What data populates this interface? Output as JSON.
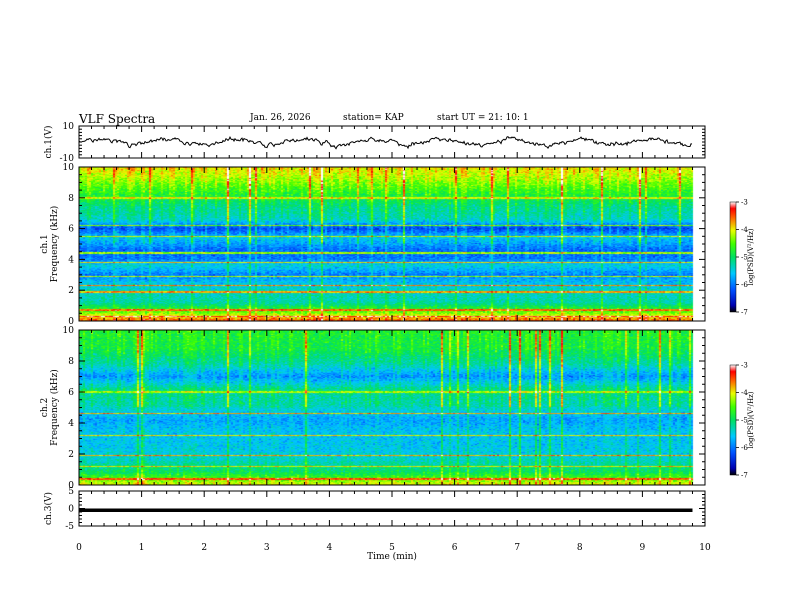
{
  "header": {
    "title": "VLF Spectra",
    "date": "Jan. 26, 2026",
    "station": "station= KAP",
    "start": "start  UT  =   21: 10: 1"
  },
  "chart_data": [
    {
      "type": "line",
      "panel": "ch1-waveform",
      "title": "",
      "ylabel": "ch.1(V)",
      "xlim": [
        0,
        10
      ],
      "ylim": [
        -10,
        10
      ],
      "yticks": [
        10,
        -10
      ],
      "trace_duration_min": 9.8,
      "series": [
        {
          "name": "ch.1 amplitude",
          "description": "noisy broadband trace, roughly between -4 and 4 V"
        }
      ]
    },
    {
      "type": "heatmap",
      "panel": "ch1-spectrogram",
      "ylabel": "ch.1\nFrequency (kHz)",
      "xlim": [
        0,
        10
      ],
      "ylim": [
        0,
        10
      ],
      "yticks": [
        0,
        2,
        4,
        6,
        8,
        10
      ],
      "data_duration_min": 9.8,
      "colorbar": {
        "label": "log(PSD)(V²/Hz)",
        "range": [
          -7,
          -3
        ],
        "ticks": [
          -3,
          -4,
          -5,
          -6,
          -7
        ]
      },
      "profile": [
        {
          "f": 0.0,
          "level": -3.5
        },
        {
          "f": 0.6,
          "level": -4.5
        },
        {
          "f": 1.2,
          "level": -5.3
        },
        {
          "f": 2.0,
          "level": -5.4
        },
        {
          "f": 2.6,
          "level": -5.7
        },
        {
          "f": 3.0,
          "level": -6.0
        },
        {
          "f": 3.6,
          "level": -5.5
        },
        {
          "f": 4.0,
          "level": -6.0
        },
        {
          "f": 4.6,
          "level": -6.1
        },
        {
          "f": 5.4,
          "level": -5.6
        },
        {
          "f": 6.0,
          "level": -6.3
        },
        {
          "f": 6.6,
          "level": -5.4
        },
        {
          "f": 7.4,
          "level": -5.2
        },
        {
          "f": 8.6,
          "level": -4.6
        },
        {
          "f": 9.4,
          "level": -4.2
        },
        {
          "f": 10.0,
          "level": -4.0
        }
      ],
      "lines": [
        {
          "f": 0.3,
          "level": -3.2
        },
        {
          "f": 0.7,
          "level": -3.6
        },
        {
          "f": 1.9,
          "level": -3.8
        },
        {
          "f": 2.3,
          "level": -3.7
        },
        {
          "f": 2.9,
          "level": -4.2
        },
        {
          "f": 3.8,
          "level": -4.0
        },
        {
          "f": 4.4,
          "level": -4.3
        },
        {
          "f": 5.5,
          "level": -4.2
        },
        {
          "f": 6.2,
          "level": -4.4
        },
        {
          "f": 8.0,
          "level": -4.1
        }
      ]
    },
    {
      "type": "heatmap",
      "panel": "ch2-spectrogram",
      "ylabel": "ch.2\nFrequency (kHz)",
      "xlim": [
        0,
        10
      ],
      "ylim": [
        0,
        10
      ],
      "yticks": [
        0,
        2,
        4,
        6,
        8,
        10
      ],
      "data_duration_min": 9.8,
      "colorbar": {
        "label": "log(PSD)(V²/Hz)",
        "range": [
          -7,
          -3
        ],
        "ticks": [
          -3,
          -4,
          -5,
          -6,
          -7
        ]
      },
      "profile": [
        {
          "f": 0.0,
          "level": -4.0
        },
        {
          "f": 0.8,
          "level": -5.0
        },
        {
          "f": 1.6,
          "level": -5.4
        },
        {
          "f": 2.4,
          "level": -5.6
        },
        {
          "f": 3.4,
          "level": -5.6
        },
        {
          "f": 4.2,
          "level": -5.8
        },
        {
          "f": 5.2,
          "level": -5.3
        },
        {
          "f": 6.2,
          "level": -5.2
        },
        {
          "f": 7.0,
          "level": -5.9
        },
        {
          "f": 7.8,
          "level": -5.3
        },
        {
          "f": 8.8,
          "level": -4.9
        },
        {
          "f": 10.0,
          "level": -4.8
        }
      ],
      "lines": [
        {
          "f": 0.4,
          "level": -3.5
        },
        {
          "f": 1.2,
          "level": -4.0
        },
        {
          "f": 1.9,
          "level": -3.8
        },
        {
          "f": 3.2,
          "level": -4.0
        },
        {
          "f": 4.6,
          "level": -3.8
        },
        {
          "f": 6.0,
          "level": -4.3
        }
      ]
    },
    {
      "type": "line",
      "panel": "ch3-waveform",
      "ylabel": "ch.3(V)",
      "xlabel": "Time (min)",
      "xlim": [
        0,
        10
      ],
      "ylim": [
        -5,
        5
      ],
      "yticks": [
        5,
        0,
        -5
      ],
      "xticks": [
        0,
        1,
        2,
        3,
        4,
        5,
        6,
        7,
        8,
        9,
        10
      ],
      "trace_duration_min": 9.8,
      "series": [
        {
          "name": "ch.3 level",
          "value": -0.5,
          "band": [
            -1.0,
            0.0
          ]
        }
      ]
    }
  ]
}
